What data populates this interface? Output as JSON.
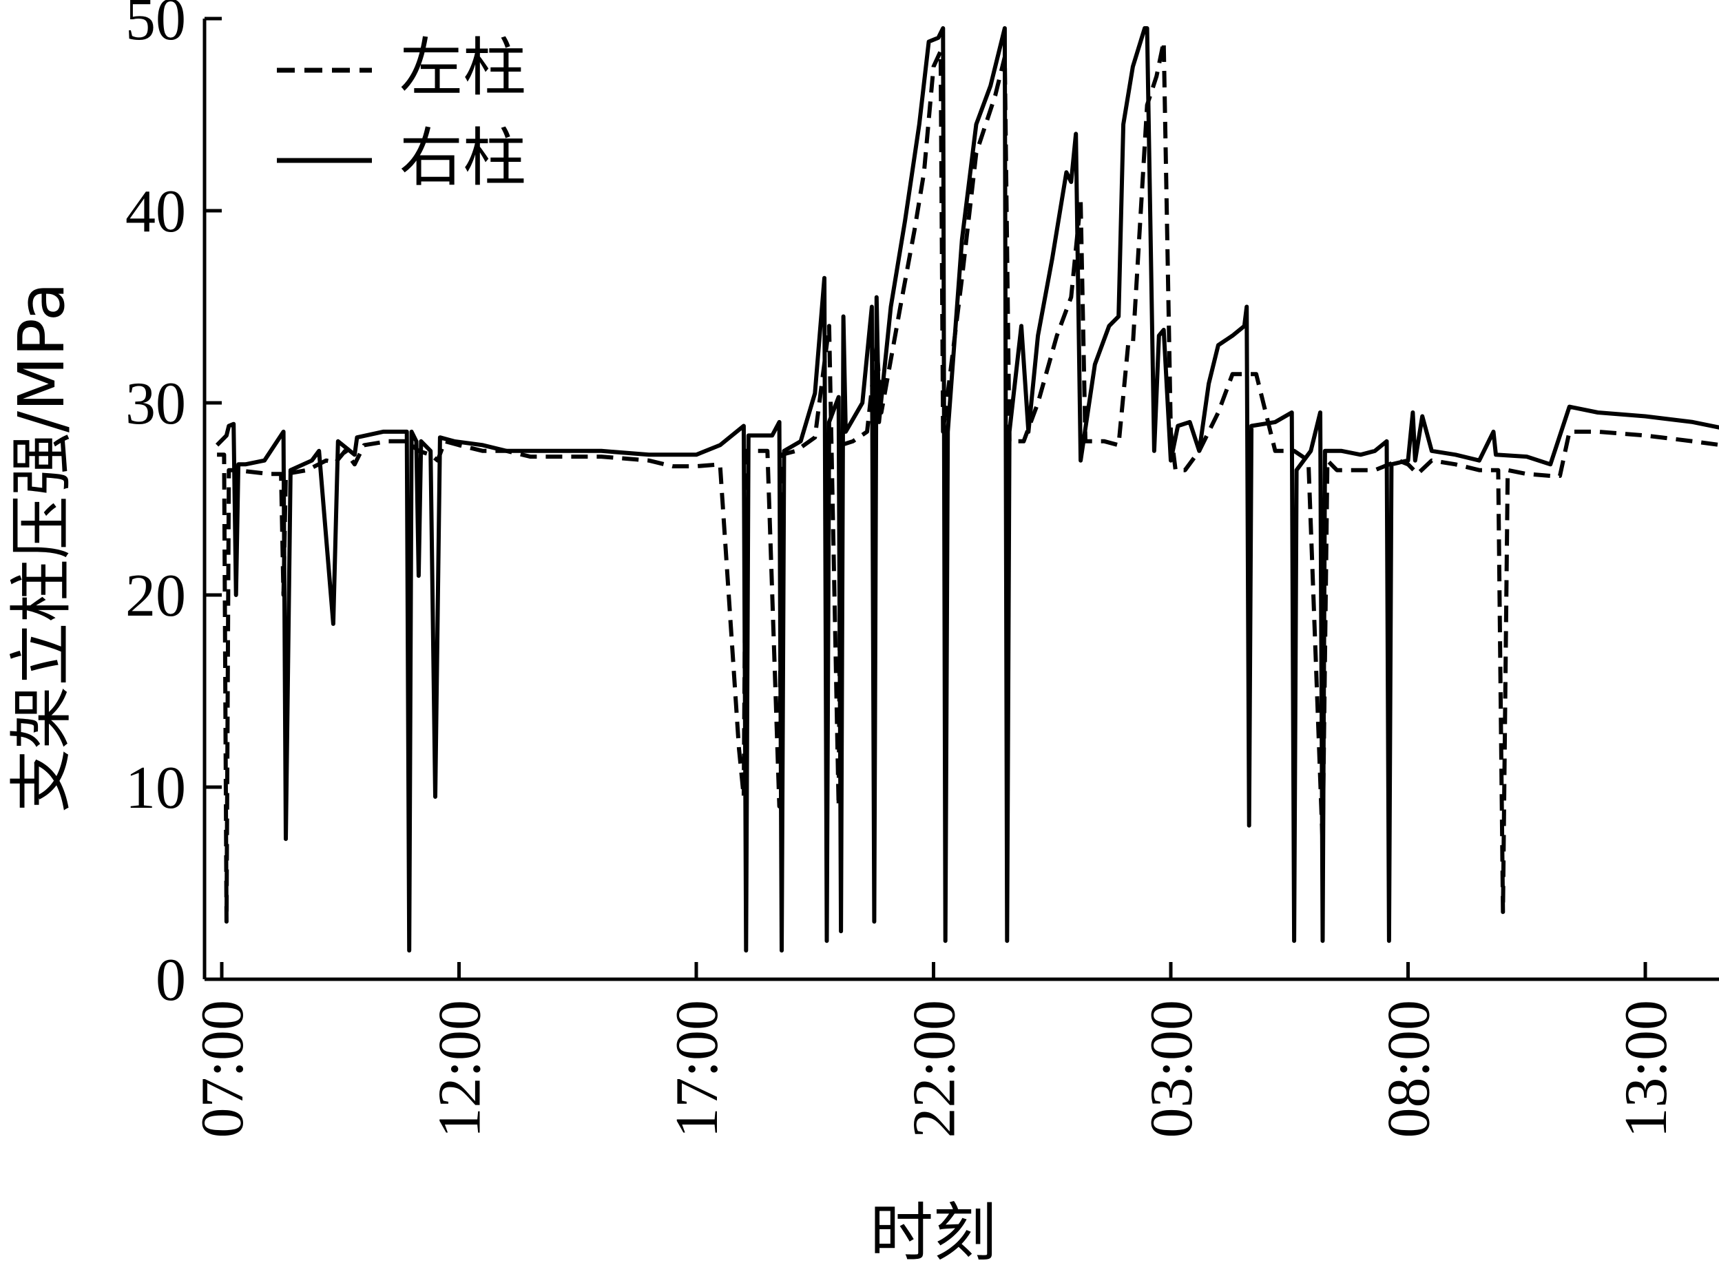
{
  "chart_data": {
    "type": "line",
    "xlabel": "时刻",
    "ylabel": "支架立柱压强/MPa",
    "ylim": [
      0,
      50
    ],
    "yticks": [
      0,
      10,
      20,
      30,
      40,
      50
    ],
    "x_unit": "hours since 07:00 (day 1)",
    "xlim": [
      -0.1,
      31.6
    ],
    "xticks": [
      {
        "value": 0,
        "label": "07:00"
      },
      {
        "value": 5,
        "label": "12:00"
      },
      {
        "value": 10,
        "label": "17:00"
      },
      {
        "value": 15,
        "label": "22:00"
      },
      {
        "value": 20,
        "label": "03:00"
      },
      {
        "value": 25,
        "label": "08:00"
      },
      {
        "value": 30,
        "label": "13:00"
      }
    ],
    "grid": false,
    "legend_position": "top-left",
    "series": [
      {
        "name": "左柱",
        "style": "dashed",
        "color": "#000000",
        "points": [
          [
            -0.1,
            27.3
          ],
          [
            0.05,
            27.3
          ],
          [
            0.1,
            3
          ],
          [
            0.15,
            26.5
          ],
          [
            0.3,
            26.5
          ],
          [
            1.0,
            26.3
          ],
          [
            1.25,
            26.3
          ],
          [
            1.3,
            20
          ],
          [
            1.35,
            26.3
          ],
          [
            1.8,
            26.5
          ],
          [
            2.2,
            27.0
          ],
          [
            2.4,
            26.9
          ],
          [
            2.6,
            27.5
          ],
          [
            2.8,
            26.8
          ],
          [
            3.0,
            27.8
          ],
          [
            3.5,
            28.0
          ],
          [
            3.9,
            28.0
          ],
          [
            4.0,
            27.8
          ],
          [
            4.15,
            27.5
          ],
          [
            4.4,
            27.3
          ],
          [
            4.55,
            27.0
          ],
          [
            4.7,
            28.0
          ],
          [
            5.0,
            27.8
          ],
          [
            5.5,
            27.5
          ],
          [
            6.0,
            27.5
          ],
          [
            6.5,
            27.2
          ],
          [
            7.0,
            27.2
          ],
          [
            8.0,
            27.2
          ],
          [
            9.0,
            27.0
          ],
          [
            9.5,
            26.7
          ],
          [
            10.0,
            26.7
          ],
          [
            10.5,
            26.8
          ],
          [
            10.9,
            12
          ],
          [
            11.0,
            9.5
          ],
          [
            11.05,
            27.5
          ],
          [
            11.5,
            27.5
          ],
          [
            11.75,
            9
          ],
          [
            11.8,
            27.3
          ],
          [
            12.1,
            27.5
          ],
          [
            12.5,
            28.2
          ],
          [
            12.8,
            34.0
          ],
          [
            13.0,
            9
          ],
          [
            13.05,
            27.8
          ],
          [
            13.3,
            28.0
          ],
          [
            13.6,
            28.5
          ],
          [
            13.8,
            33.0
          ],
          [
            13.9,
            29.5
          ],
          [
            14.3,
            35.0
          ],
          [
            14.6,
            39.0
          ],
          [
            14.8,
            42.0
          ],
          [
            15.0,
            47.5
          ],
          [
            15.15,
            48.3
          ],
          [
            15.2,
            28.5
          ],
          [
            15.6,
            36.5
          ],
          [
            15.9,
            43.0
          ],
          [
            16.1,
            44.5
          ],
          [
            16.3,
            46.0
          ],
          [
            16.5,
            48.0
          ],
          [
            16.6,
            28.0
          ],
          [
            16.9,
            28.0
          ],
          [
            17.2,
            30.0
          ],
          [
            17.6,
            33.5
          ],
          [
            17.9,
            35.5
          ],
          [
            18.1,
            40.5
          ],
          [
            18.2,
            28.0
          ],
          [
            18.6,
            28.0
          ],
          [
            18.9,
            27.8
          ],
          [
            19.1,
            33.0
          ],
          [
            19.2,
            33.0
          ],
          [
            19.5,
            45.5
          ],
          [
            19.7,
            47.0
          ],
          [
            19.85,
            48.8
          ],
          [
            20.0,
            28.5
          ],
          [
            20.1,
            26.5
          ],
          [
            20.3,
            26.5
          ],
          [
            20.6,
            27.5
          ],
          [
            20.8,
            28.5
          ],
          [
            21.0,
            29.5
          ],
          [
            21.3,
            31.5
          ],
          [
            21.6,
            31.5
          ],
          [
            21.8,
            31.5
          ],
          [
            22.2,
            27.5
          ],
          [
            22.5,
            27.5
          ],
          [
            22.6,
            27.5
          ],
          [
            22.9,
            27.0
          ],
          [
            23.2,
            7
          ],
          [
            23.3,
            27.0
          ],
          [
            23.5,
            26.5
          ],
          [
            23.9,
            26.5
          ],
          [
            24.3,
            26.5
          ],
          [
            24.8,
            27.0
          ],
          [
            25.0,
            26.8
          ],
          [
            25.2,
            26.3
          ],
          [
            25.5,
            27.0
          ],
          [
            26.0,
            26.8
          ],
          [
            26.5,
            26.5
          ],
          [
            26.9,
            26.5
          ],
          [
            27.0,
            3.5
          ],
          [
            27.1,
            26.5
          ],
          [
            27.5,
            26.3
          ],
          [
            28.0,
            26.2
          ],
          [
            28.2,
            26.2
          ],
          [
            28.4,
            28.5
          ],
          [
            29.0,
            28.5
          ],
          [
            30.0,
            28.3
          ],
          [
            31.0,
            28.0
          ],
          [
            31.6,
            27.8
          ]
        ]
      },
      {
        "name": "右柱",
        "style": "solid",
        "color": "#000000",
        "points": [
          [
            -0.1,
            27.8
          ],
          [
            0.1,
            28.3
          ],
          [
            0.15,
            28.8
          ],
          [
            0.25,
            28.9
          ],
          [
            0.3,
            20.0
          ],
          [
            0.35,
            26.8
          ],
          [
            0.5,
            26.8
          ],
          [
            0.9,
            27.0
          ],
          [
            1.3,
            28.5
          ],
          [
            1.35,
            7.3
          ],
          [
            1.45,
            26.5
          ],
          [
            1.9,
            27.0
          ],
          [
            2.05,
            27.5
          ],
          [
            2.35,
            18.5
          ],
          [
            2.45,
            28.0
          ],
          [
            2.8,
            27.3
          ],
          [
            2.85,
            28.2
          ],
          [
            3.4,
            28.5
          ],
          [
            3.9,
            28.5
          ],
          [
            3.95,
            1.5
          ],
          [
            4.0,
            28.5
          ],
          [
            4.1,
            28.0
          ],
          [
            4.15,
            21.0
          ],
          [
            4.2,
            28.0
          ],
          [
            4.4,
            27.5
          ],
          [
            4.5,
            9.5
          ],
          [
            4.6,
            28.2
          ],
          [
            4.9,
            28.0
          ],
          [
            5.5,
            27.8
          ],
          [
            6.0,
            27.5
          ],
          [
            7.0,
            27.5
          ],
          [
            8.0,
            27.5
          ],
          [
            9.0,
            27.3
          ],
          [
            10.0,
            27.3
          ],
          [
            10.5,
            27.8
          ],
          [
            11.0,
            28.8
          ],
          [
            11.05,
            1.5
          ],
          [
            11.1,
            28.3
          ],
          [
            11.6,
            28.3
          ],
          [
            11.75,
            29.0
          ],
          [
            11.8,
            1.5
          ],
          [
            11.85,
            27.5
          ],
          [
            12.2,
            28.0
          ],
          [
            12.5,
            30.5
          ],
          [
            12.7,
            36.5
          ],
          [
            12.75,
            2
          ],
          [
            12.8,
            29.0
          ],
          [
            13.0,
            30.3
          ],
          [
            13.05,
            2.5
          ],
          [
            13.1,
            34.5
          ],
          [
            13.15,
            28.5
          ],
          [
            13.5,
            30.0
          ],
          [
            13.7,
            35.0
          ],
          [
            13.75,
            3
          ],
          [
            13.8,
            35.5
          ],
          [
            13.85,
            29.0
          ],
          [
            14.1,
            35.0
          ],
          [
            14.4,
            39.5
          ],
          [
            14.7,
            44.5
          ],
          [
            14.9,
            48.8
          ],
          [
            15.1,
            49.0
          ],
          [
            15.2,
            49.5
          ],
          [
            15.25,
            2
          ],
          [
            15.3,
            28.5
          ],
          [
            15.6,
            38.5
          ],
          [
            15.9,
            44.5
          ],
          [
            16.2,
            46.5
          ],
          [
            16.5,
            49.5
          ],
          [
            16.55,
            2
          ],
          [
            16.6,
            28.5
          ],
          [
            16.85,
            34.0
          ],
          [
            17.0,
            28.5
          ],
          [
            17.2,
            33.5
          ],
          [
            17.5,
            37.5
          ],
          [
            17.8,
            42.0
          ],
          [
            17.9,
            41.5
          ],
          [
            18.0,
            44.0
          ],
          [
            18.1,
            27.0
          ],
          [
            18.4,
            32.0
          ],
          [
            18.7,
            34.0
          ],
          [
            18.9,
            34.5
          ],
          [
            19.0,
            44.5
          ],
          [
            19.2,
            47.5
          ],
          [
            19.45,
            49.5
          ],
          [
            19.5,
            49.5
          ],
          [
            19.65,
            27.5
          ],
          [
            19.75,
            33.5
          ],
          [
            19.85,
            33.8
          ],
          [
            20.0,
            27.0
          ],
          [
            20.15,
            28.8
          ],
          [
            20.4,
            29.0
          ],
          [
            20.6,
            27.5
          ],
          [
            20.8,
            31.0
          ],
          [
            21.0,
            33.0
          ],
          [
            21.3,
            33.5
          ],
          [
            21.55,
            34.0
          ],
          [
            21.6,
            35.0
          ],
          [
            21.65,
            8
          ],
          [
            21.7,
            28.8
          ],
          [
            22.2,
            29.0
          ],
          [
            22.55,
            29.5
          ],
          [
            22.6,
            2
          ],
          [
            22.65,
            26.5
          ],
          [
            22.95,
            27.5
          ],
          [
            23.15,
            29.5
          ],
          [
            23.2,
            2
          ],
          [
            23.25,
            27.5
          ],
          [
            23.6,
            27.5
          ],
          [
            24.0,
            27.3
          ],
          [
            24.3,
            27.5
          ],
          [
            24.55,
            28.0
          ],
          [
            24.6,
            2
          ],
          [
            24.65,
            26.8
          ],
          [
            25.0,
            27.0
          ],
          [
            25.1,
            29.5
          ],
          [
            25.15,
            27.0
          ],
          [
            25.3,
            29.3
          ],
          [
            25.5,
            27.5
          ],
          [
            26.0,
            27.3
          ],
          [
            26.5,
            27.0
          ],
          [
            26.8,
            28.5
          ],
          [
            26.85,
            27.3
          ],
          [
            27.5,
            27.2
          ],
          [
            28.0,
            26.8
          ],
          [
            28.4,
            29.8
          ],
          [
            29.0,
            29.5
          ],
          [
            30.0,
            29.3
          ],
          [
            31.0,
            29.0
          ],
          [
            31.6,
            28.7
          ]
        ]
      }
    ]
  }
}
